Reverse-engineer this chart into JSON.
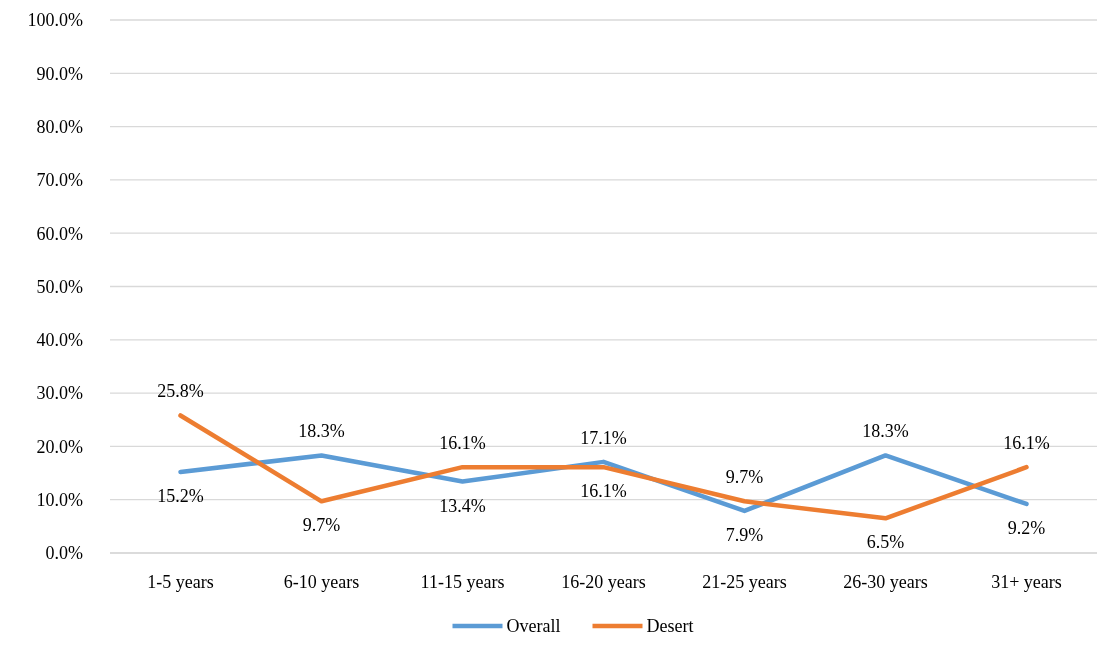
{
  "chart_data": {
    "type": "line",
    "categories": [
      "1-5 years",
      "6-10 years",
      "11-15 years",
      "16-20 years",
      "21-25 years",
      "26-30 years",
      "31+ years"
    ],
    "series": [
      {
        "name": "Overall",
        "color": "#5b9bd5",
        "values": [
          15.2,
          18.3,
          13.4,
          17.1,
          7.9,
          18.3,
          9.2
        ],
        "value_labels": [
          "15.2%",
          "18.3%",
          "13.4%",
          "17.1%",
          "7.9%",
          "18.3%",
          "9.2%"
        ]
      },
      {
        "name": "Desert",
        "color": "#ed7d31",
        "values": [
          25.8,
          9.7,
          16.1,
          16.1,
          9.7,
          6.5,
          16.1
        ],
        "value_labels": [
          "25.8%",
          "9.7%",
          "16.1%",
          "16.1%",
          "9.7%",
          "6.5%",
          "16.1%"
        ]
      }
    ],
    "ylim": [
      0,
      100
    ],
    "yticks": [
      {
        "value": 0,
        "label": "0.0%"
      },
      {
        "value": 10,
        "label": "10.0%"
      },
      {
        "value": 20,
        "label": "20.0%"
      },
      {
        "value": 30,
        "label": "30.0%"
      },
      {
        "value": 40,
        "label": "40.0%"
      },
      {
        "value": 50,
        "label": "50.0%"
      },
      {
        "value": 60,
        "label": "60.0%"
      },
      {
        "value": 70,
        "label": "70.0%"
      },
      {
        "value": 80,
        "label": "80.0%"
      },
      {
        "value": 90,
        "label": "90.0%"
      },
      {
        "value": 100,
        "label": "100.0%"
      }
    ],
    "grid": "y",
    "legend": "bottom",
    "marker": "none",
    "line_style": "solid"
  }
}
